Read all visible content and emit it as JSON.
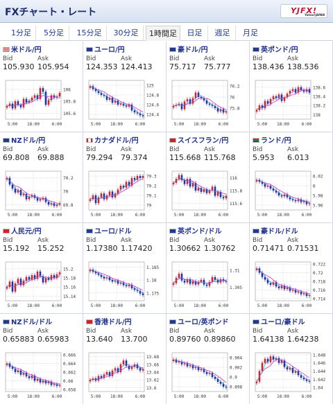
{
  "header": {
    "title": "FXチャート・レート",
    "brand": "YJFX!",
    "brand_sub": "Yahoo!JAPAN"
  },
  "tabs": [
    {
      "label": "1分足"
    },
    {
      "label": "5分足"
    },
    {
      "label": "15分足"
    },
    {
      "label": "30分足"
    },
    {
      "label": "1時間足",
      "active": true
    },
    {
      "label": "日足"
    },
    {
      "label": "週足"
    },
    {
      "label": "月足"
    }
  ],
  "labels": {
    "bid": "Bid",
    "ask": "Ask"
  },
  "colors": {
    "up": "#d61f26",
    "down": "#1b2fa8",
    "ma": "#cc33cc",
    "ma2": "#1f8fbf",
    "grid": "#c8c8c8"
  },
  "pairs": [
    {
      "name": "米ドル/円",
      "flag": "us",
      "bid": "105.930",
      "ask": "105.954",
      "chart_data": {
        "type": "candlestick",
        "x_ticks": [
          "5:00",
          "18:00",
          "6:00"
        ],
        "y_ticks": [
          "106",
          "105.8",
          "105.6"
        ],
        "ylim": [
          105.5,
          106.15
        ],
        "close": [
          105.72,
          105.76,
          105.68,
          105.8,
          105.74,
          105.7,
          105.84,
          105.78,
          105.81,
          105.86,
          105.9,
          105.84,
          106.02,
          105.96,
          105.74,
          105.82,
          105.9,
          105.86,
          105.88,
          105.94
        ]
      }
    },
    {
      "name": "ユーロ/円",
      "flag": "eu",
      "bid": "124.353",
      "ask": "124.413",
      "chart_data": {
        "type": "candlestick",
        "x_ticks": [
          "5:00",
          "18:00",
          "6:00"
        ],
        "y_ticks": [
          "125",
          "124.8",
          "124.6",
          "124.4"
        ],
        "ylim": [
          124.3,
          125.1
        ],
        "close": [
          124.98,
          124.92,
          124.88,
          124.84,
          124.8,
          124.78,
          124.7,
          124.74,
          124.64,
          124.68,
          124.6,
          124.62,
          124.58,
          124.56,
          124.6,
          124.48,
          124.44,
          124.42,
          124.38,
          124.36
        ]
      }
    },
    {
      "name": "豪ドル/円",
      "flag": "au",
      "bid": "75.717",
      "ask": "75.777",
      "chart_data": {
        "type": "candlestick",
        "x_ticks": [
          "5:00",
          "18:00",
          "6:00"
        ],
        "y_ticks": [
          "76.2",
          "76",
          "75.8"
        ],
        "ylim": [
          75.6,
          76.3
        ],
        "close": [
          75.84,
          75.86,
          75.88,
          75.78,
          75.92,
          75.96,
          75.88,
          75.98,
          76.08,
          76.0,
          75.98,
          75.94,
          75.88,
          75.86,
          75.84,
          75.8,
          75.74,
          75.78,
          75.72,
          75.74
        ]
      }
    },
    {
      "name": "英ポンド/円",
      "flag": "gb",
      "bid": "138.436",
      "ask": "138.536",
      "chart_data": {
        "type": "candlestick",
        "x_ticks": [
          "5:00",
          "18:00",
          "6:00"
        ],
        "y_ticks": [
          "138.6",
          "138.4",
          "138.2",
          "138"
        ],
        "ylim": [
          137.9,
          138.75
        ],
        "close": [
          138.1,
          138.2,
          138.14,
          138.3,
          138.24,
          138.34,
          138.4,
          138.36,
          138.44,
          138.3,
          138.38,
          138.46,
          138.52,
          138.56,
          138.48,
          138.6,
          138.54,
          138.5,
          138.56,
          138.48
        ]
      }
    },
    {
      "name": "NZドル/円",
      "flag": "nz",
      "bid": "69.808",
      "ask": "69.888",
      "chart_data": {
        "type": "candlestick",
        "x_ticks": [
          "5:00",
          "18:00",
          "6:00"
        ],
        "y_ticks": [
          "70.2",
          "70",
          "69.8"
        ],
        "ylim": [
          69.72,
          70.3
        ],
        "close": [
          70.2,
          70.1,
          70.04,
          69.98,
          70.02,
          69.94,
          69.96,
          69.88,
          69.92,
          69.94,
          69.9,
          69.86,
          69.88,
          69.9,
          69.84,
          69.8,
          69.82,
          69.78,
          69.8,
          69.82
        ]
      }
    },
    {
      "name": "カナダドル/円",
      "flag": "ca",
      "bid": "79.294",
      "ask": "79.374",
      "chart_data": {
        "type": "candlestick",
        "x_ticks": [
          "5:00",
          "18:00",
          "6:00"
        ],
        "y_ticks": [
          "79.3",
          "79.2",
          "79.1",
          "79"
        ],
        "ylim": [
          78.95,
          79.35
        ],
        "close": [
          79.06,
          79.1,
          79.02,
          79.08,
          79.12,
          79.06,
          79.1,
          79.14,
          79.08,
          79.12,
          79.16,
          79.2,
          79.18,
          79.24,
          79.2,
          79.28,
          79.26,
          79.3,
          79.28,
          79.3
        ]
      }
    },
    {
      "name": "スイスフラン/円",
      "flag": "ch",
      "bid": "115.668",
      "ask": "115.768",
      "chart_data": {
        "type": "candlestick",
        "x_ticks": [
          "5:00",
          "18:00",
          "6:00"
        ],
        "y_ticks": [
          "116",
          "115.8",
          "115.6"
        ],
        "ylim": [
          115.5,
          116.1
        ],
        "close": [
          115.92,
          115.98,
          116.04,
          115.96,
          115.9,
          115.98,
          115.86,
          115.92,
          115.8,
          115.84,
          115.78,
          115.82,
          115.76,
          115.8,
          115.86,
          115.72,
          115.78,
          115.7,
          115.68,
          115.72
        ]
      }
    },
    {
      "name": "ランド/円",
      "flag": "za",
      "bid": "5.953",
      "ask": "6.013",
      "chart_data": {
        "type": "candlestick",
        "x_ticks": [
          "5:00",
          "18:00",
          "6:00"
        ],
        "y_ticks": [
          "6.02",
          "6",
          "5.98",
          "5.96"
        ],
        "ylim": [
          5.95,
          6.03
        ],
        "close": [
          6.012,
          6.008,
          6.004,
          5.998,
          6.0,
          5.994,
          5.99,
          5.986,
          5.98,
          5.978,
          5.982,
          5.976,
          5.972,
          5.97,
          5.968,
          5.972,
          5.966,
          5.968,
          5.962,
          5.964
        ]
      }
    },
    {
      "name": "人民元/円",
      "flag": "cn",
      "bid": "15.192",
      "ask": "15.252",
      "chart_data": {
        "type": "candlestick",
        "x_ticks": [
          "5:00",
          "18:00",
          "6:00"
        ],
        "y_ticks": [
          "15.2",
          "15.18",
          "15.16",
          "15.14"
        ],
        "ylim": [
          15.13,
          15.215
        ],
        "close": [
          15.16,
          15.172,
          15.15,
          15.168,
          15.178,
          15.164,
          15.174,
          15.182,
          15.176,
          15.186,
          15.178,
          15.194,
          15.184,
          15.17,
          15.18,
          15.176,
          15.186,
          15.18,
          15.188,
          15.192
        ]
      }
    },
    {
      "name": "ユーロ/ドル",
      "flag": "eu",
      "bid": "1.17380",
      "ask": "1.17420",
      "chart_data": {
        "type": "candlestick",
        "x_ticks": [
          "5:00",
          "18:00",
          "6:00"
        ],
        "y_ticks": [
          "1.185",
          "1.18",
          "1.175"
        ],
        "ylim": [
          1.172,
          1.187
        ],
        "close": [
          1.184,
          1.1832,
          1.1826,
          1.182,
          1.1812,
          1.1806,
          1.181,
          1.18,
          1.1794,
          1.1798,
          1.1786,
          1.179,
          1.178,
          1.1776,
          1.1782,
          1.1768,
          1.1762,
          1.1758,
          1.1748,
          1.1742
        ]
      }
    },
    {
      "name": "英ポンド/ドル",
      "flag": "gb",
      "bid": "1.30662",
      "ask": "1.30762",
      "chart_data": {
        "type": "candlestick",
        "x_ticks": [
          "5:00",
          "18:00",
          "6:00"
        ],
        "y_ticks": [
          "1.31",
          "1.305"
        ],
        "ylim": [
          1.301,
          1.3125
        ],
        "close": [
          1.3062,
          1.3078,
          1.309,
          1.307,
          1.3064,
          1.3074,
          1.306,
          1.3068,
          1.3058,
          1.3066,
          1.3072,
          1.3058,
          1.3054,
          1.3066,
          1.308,
          1.3072,
          1.3064,
          1.3074,
          1.3068,
          1.3066
        ]
      }
    },
    {
      "name": "豪ドル/ドル",
      "flag": "au",
      "bid": "0.71471",
      "ask": "0.71531",
      "chart_data": {
        "type": "candlestick",
        "x_ticks": [
          "5:00",
          "18:00",
          "6:00"
        ],
        "y_ticks": [
          "0.722",
          "0.72",
          "0.718",
          "0.716",
          "0.714"
        ],
        "ylim": [
          0.7135,
          0.7225
        ],
        "close": [
          0.721,
          0.72,
          0.719,
          0.7184,
          0.7176,
          0.7172,
          0.7178,
          0.7168,
          0.7164,
          0.717,
          0.7162,
          0.7166,
          0.7158,
          0.716,
          0.7154,
          0.7156,
          0.715,
          0.7152,
          0.7146,
          0.7148
        ]
      }
    },
    {
      "name": "NZドル/ドル",
      "flag": "nz",
      "bid": "0.65883",
      "ask": "0.65983",
      "chart_data": {
        "type": "candlestick",
        "x_ticks": [
          "5:00",
          "18:00",
          "6:00"
        ],
        "y_ticks": [
          "0.666",
          "0.664",
          "0.662",
          "0.66",
          "0.658"
        ],
        "ylim": [
          0.6575,
          0.6665
        ],
        "close": [
          0.664,
          0.6632,
          0.6628,
          0.662,
          0.6624,
          0.6614,
          0.6618,
          0.661,
          0.6606,
          0.6612,
          0.66,
          0.6604,
          0.6596,
          0.66,
          0.6594,
          0.6598,
          0.659,
          0.6592,
          0.6588,
          0.659
        ]
      }
    },
    {
      "name": "香港ドル/円",
      "flag": "hk",
      "bid": "13.640",
      "ask": "13.700",
      "chart_data": {
        "type": "candlestick",
        "x_ticks": [
          "5:00",
          "18:00",
          "6:00"
        ],
        "y_ticks": [
          "13.68",
          "13.66",
          "13.64",
          "13.62",
          "13.6"
        ],
        "ylim": [
          13.59,
          13.69
        ],
        "close": [
          13.62,
          13.624,
          13.618,
          13.63,
          13.626,
          13.634,
          13.64,
          13.63,
          13.644,
          13.65,
          13.64,
          13.66,
          13.67,
          13.656,
          13.648,
          13.654,
          13.66,
          13.65,
          13.644,
          13.648
        ]
      }
    },
    {
      "name": "ユーロ/英ポンド",
      "flag": "eu",
      "bid": "0.89760",
      "ask": "0.89860",
      "chart_data": {
        "type": "candlestick",
        "x_ticks": [
          "5:00",
          "18:00",
          "6:00"
        ],
        "y_ticks": [
          "0.904",
          "0.902",
          "0.9",
          "0.898"
        ],
        "ylim": [
          0.897,
          0.905
        ],
        "close": [
          0.9036,
          0.903,
          0.9032,
          0.9026,
          0.9028,
          0.9022,
          0.9024,
          0.9018,
          0.902,
          0.9014,
          0.9016,
          0.901,
          0.9006,
          0.9008,
          0.9,
          0.8996,
          0.899,
          0.8986,
          0.898,
          0.8978
        ]
      }
    },
    {
      "name": "ユーロ/豪ドル",
      "flag": "eu",
      "bid": "1.64138",
      "ask": "1.64238",
      "chart_data": {
        "type": "candlestick",
        "x_ticks": [
          "5:00",
          "18:00",
          "6:00"
        ],
        "y_ticks": [
          "1.648",
          "1.646",
          "1.644",
          "1.642",
          "1.64"
        ],
        "ylim": [
          1.639,
          1.6485
        ],
        "close": [
          1.6414,
          1.644,
          1.646,
          1.647,
          1.6462,
          1.6476,
          1.6468,
          1.6472,
          1.646,
          1.6466,
          1.645,
          1.6444,
          1.6448,
          1.6436,
          1.644,
          1.643,
          1.6424,
          1.642,
          1.6416,
          1.6414
        ]
      }
    }
  ]
}
